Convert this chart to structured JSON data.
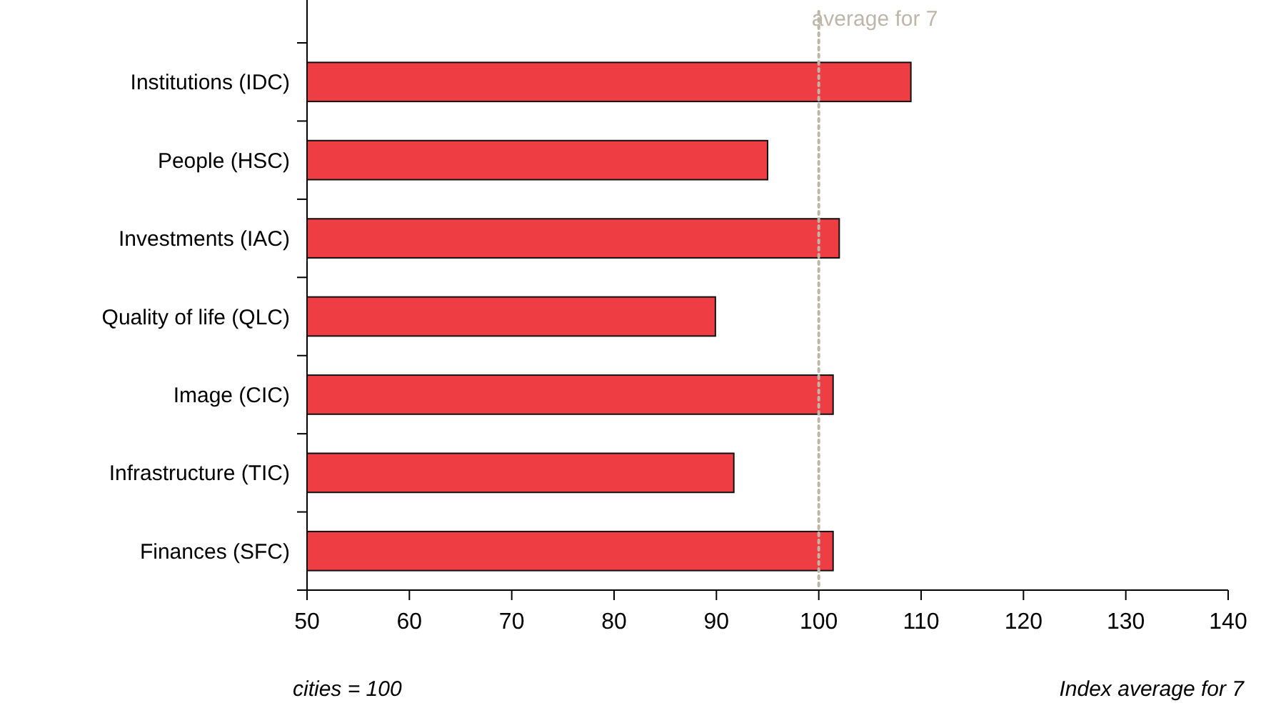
{
  "chart_data": {
    "type": "bar",
    "orientation": "horizontal",
    "categories": [
      "Institutions (IDC)",
      "People (HSC)",
      "Investments (IAC)",
      "Quality of life (QLC)",
      "Image (CIC)",
      "Infrastructure (TIC)",
      "Finances (SFC)"
    ],
    "values": [
      109,
      95,
      102,
      89.9,
      101.4,
      91.7,
      101.4
    ],
    "color": "#ee3e43",
    "xlim": [
      50,
      140
    ],
    "xticks": [
      50,
      60,
      70,
      80,
      90,
      100,
      110,
      120,
      130,
      140
    ],
    "grid": false,
    "ref_lines": [
      {
        "axis": "x",
        "value": 100,
        "label": "average for 7",
        "color": "#bfb6aa",
        "line_style": "dotted"
      }
    ],
    "annotations": [
      "cities = 100",
      "Index average for 7"
    ]
  }
}
